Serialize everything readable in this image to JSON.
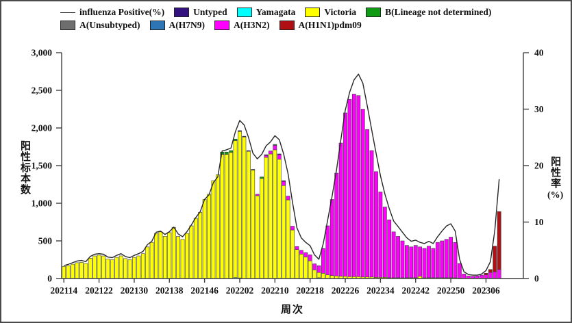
{
  "chart_data": {
    "type": "bar",
    "subtype": "stacked-bars-with-line-overlay",
    "title": "",
    "xlabel": "周次",
    "ylabel_left": "阳性标本数",
    "ylabel_right_main": "阳性率",
    "ylabel_right_unit": "(%)",
    "grid": false,
    "left_axis": {
      "min": 0,
      "max": 3000,
      "tick_values": [
        0,
        500,
        1000,
        1500,
        2000,
        2500,
        3000
      ],
      "tick_labels": [
        "0",
        "500",
        "1,000",
        "1,500",
        "2,000",
        "2,500",
        "3,000"
      ]
    },
    "right_axis": {
      "min": 0,
      "max": 40,
      "tick_values": [
        0,
        10,
        20,
        30,
        40
      ],
      "tick_labels": [
        "0",
        "10",
        "20",
        "30",
        "40"
      ]
    },
    "x_ticks": [
      {
        "index": 0,
        "label": "202114"
      },
      {
        "index": 8,
        "label": "202122"
      },
      {
        "index": 16,
        "label": "202130"
      },
      {
        "index": 24,
        "label": "202138"
      },
      {
        "index": 32,
        "label": "202146"
      },
      {
        "index": 40,
        "label": "202202"
      },
      {
        "index": 48,
        "label": "202210"
      },
      {
        "index": 56,
        "label": "202218"
      },
      {
        "index": 64,
        "label": "202226"
      },
      {
        "index": 72,
        "label": "202234"
      },
      {
        "index": 80,
        "label": "202242"
      },
      {
        "index": 88,
        "label": "202250"
      },
      {
        "index": 96,
        "label": "202306"
      }
    ],
    "categories": [
      "202114",
      "202115",
      "202116",
      "202117",
      "202118",
      "202119",
      "202120",
      "202121",
      "202122",
      "202123",
      "202124",
      "202125",
      "202126",
      "202127",
      "202128",
      "202129",
      "202130",
      "202131",
      "202132",
      "202133",
      "202134",
      "202135",
      "202136",
      "202137",
      "202138",
      "202139",
      "202140",
      "202141",
      "202142",
      "202143",
      "202144",
      "202145",
      "202146",
      "202147",
      "202148",
      "202149",
      "202150",
      "202151",
      "202152",
      "202201",
      "202202",
      "202203",
      "202204",
      "202205",
      "202206",
      "202207",
      "202208",
      "202209",
      "202210",
      "202211",
      "202212",
      "202213",
      "202214",
      "202215",
      "202216",
      "202217",
      "202218",
      "202219",
      "202220",
      "202221",
      "202222",
      "202223",
      "202224",
      "202225",
      "202226",
      "202227",
      "202228",
      "202229",
      "202230",
      "202231",
      "202232",
      "202233",
      "202234",
      "202235",
      "202236",
      "202237",
      "202238",
      "202239",
      "202240",
      "202241",
      "202242",
      "202243",
      "202244",
      "202245",
      "202246",
      "202247",
      "202248",
      "202249",
      "202250",
      "202251",
      "202252",
      "202301",
      "202302",
      "202303",
      "202304",
      "202305",
      "202306",
      "202307",
      "202308",
      "202309",
      "202310",
      "202311",
      "202312",
      "202313",
      "202314"
    ],
    "series": [
      {
        "name": "Yamagata",
        "color": "#00ffff",
        "values": {
          "39": 12,
          "40": 8,
          "58": 10
        }
      },
      {
        "name": "Victoria",
        "color": "#ffff00",
        "values": [
          160,
          170,
          190,
          210,
          215,
          200,
          270,
          300,
          310,
          300,
          260,
          250,
          280,
          300,
          265,
          250,
          280,
          300,
          330,
          420,
          480,
          600,
          620,
          560,
          610,
          680,
          560,
          520,
          600,
          700,
          800,
          880,
          1050,
          1120,
          1300,
          1380,
          1650,
          1650,
          1675,
          1820,
          1945,
          1880,
          1690,
          1440,
          1100,
          1330,
          1610,
          1655,
          1710,
          1585,
          1235,
          1045,
          645,
          385,
          325,
          285,
          235,
          115,
          70,
          70,
          50,
          40,
          35,
          30,
          30,
          25,
          25,
          25,
          20,
          20,
          20,
          15,
          15,
          15,
          10,
          10,
          10,
          10,
          10,
          10,
          10,
          30,
          10,
          10,
          10,
          10,
          10,
          10,
          10,
          10,
          5,
          0,
          0,
          0,
          0,
          0,
          0,
          0,
          0,
          0,
          0,
          0,
          0,
          0,
          0
        ]
      },
      {
        "name": "A(H3N2)",
        "color": "#ff00ff",
        "values": [
          0,
          0,
          0,
          0,
          0,
          0,
          0,
          0,
          0,
          0,
          0,
          0,
          0,
          0,
          0,
          0,
          0,
          0,
          0,
          0,
          0,
          0,
          0,
          0,
          0,
          0,
          0,
          0,
          0,
          0,
          0,
          0,
          0,
          0,
          0,
          0,
          0,
          0,
          0,
          0,
          0,
          0,
          0,
          0,
          20,
          0,
          25,
          40,
          60,
          60,
          55,
          50,
          50,
          40,
          50,
          60,
          80,
          80,
          90,
          330,
          650,
          1010,
          1365,
          1770,
          2170,
          2355,
          2425,
          2405,
          2230,
          1960,
          1680,
          1405,
          1135,
          935,
          770,
          610,
          550,
          490,
          430,
          410,
          430,
          390,
          390,
          420,
          390,
          470,
          490,
          510,
          540,
          470,
          195,
          60,
          35,
          30,
          35,
          45,
          50,
          80,
          90,
          120,
          0,
          0,
          0,
          0,
          0
        ]
      },
      {
        "name": "A(H1N1)pdm09",
        "color": "#b01013",
        "values": {
          "96": 20,
          "97": 40,
          "98": 340,
          "99": 770
        }
      },
      {
        "name": "A(Unsubtyped)",
        "color": "#6e6e6e",
        "values": {}
      },
      {
        "name": "A(H7N9)",
        "color": "#2e75b6",
        "values": {}
      },
      {
        "name": "Untyped",
        "color": "#33117f",
        "values": {
          "40": 12,
          "41": 10,
          "42": 10,
          "43": 10,
          "46": 10,
          "49": 10,
          "50": 10
        }
      },
      {
        "name": "B(Lineage not determined)",
        "color": "#0f9b14",
        "values": {
          "36": 30,
          "37": 30,
          "38": 25,
          "39": 20,
          "45": 20,
          "48": 12
        }
      }
    ],
    "line": {
      "name": "influenza Positive(%)",
      "color": "#262626",
      "axis": "right",
      "values": [
        2.3,
        2.5,
        2.8,
        3.1,
        3.2,
        3.0,
        3.9,
        4.3,
        4.4,
        4.3,
        3.8,
        3.7,
        4.1,
        4.4,
        3.9,
        3.7,
        4.1,
        4.4,
        4.8,
        6.0,
        6.6,
        8.2,
        8.4,
        7.8,
        8.3,
        9.1,
        7.9,
        7.4,
        8.3,
        9.5,
        10.8,
        11.8,
        14.0,
        14.8,
        17.0,
        18.0,
        22.6,
        22.8,
        23.1,
        26.0,
        28.0,
        27.2,
        25.0,
        22.2,
        21.2,
        22.0,
        23.5,
        24.2,
        25.3,
        24.6,
        22.0,
        18.5,
        13.5,
        9.0,
        7.2,
        6.4,
        5.8,
        4.2,
        3.4,
        6.2,
        10.4,
        14.6,
        19.2,
        24.6,
        29.8,
        33.0,
        35.2,
        36.2,
        34.6,
        30.6,
        26.4,
        22.2,
        18.2,
        15.0,
        12.4,
        10.2,
        9.2,
        8.2,
        7.2,
        6.6,
        6.8,
        6.4,
        6.2,
        6.6,
        6.2,
        7.4,
        8.4,
        9.3,
        9.7,
        8.4,
        3.4,
        1.2,
        0.7,
        0.6,
        0.6,
        0.8,
        1.4,
        3.0,
        8.5,
        17.6,
        null,
        null,
        null,
        null,
        null
      ]
    },
    "legend": {
      "rows": [
        [
          {
            "swatch": "line",
            "color": "#262626",
            "label": "influenza Positive(%)"
          },
          {
            "swatch": "box",
            "color": "#33117f",
            "label": "Untyped"
          },
          {
            "swatch": "box",
            "color": "#00ffff",
            "label": "Yamagata"
          },
          {
            "swatch": "box",
            "color": "#ffff00",
            "label": "Victoria"
          },
          {
            "swatch": "box",
            "color": "#0f9b14",
            "label": "B(Lineage not determined)"
          }
        ],
        [
          {
            "swatch": "box",
            "color": "#6e6e6e",
            "label": "A(Unsubtyped)"
          },
          {
            "swatch": "box",
            "color": "#2e75b6",
            "label": "A(H7N9)"
          },
          {
            "swatch": "box",
            "color": "#ff00ff",
            "label": "A(H3N2)"
          },
          {
            "swatch": "box",
            "color": "#b01013",
            "label": "A(H1N1)pdm09"
          }
        ]
      ]
    }
  }
}
